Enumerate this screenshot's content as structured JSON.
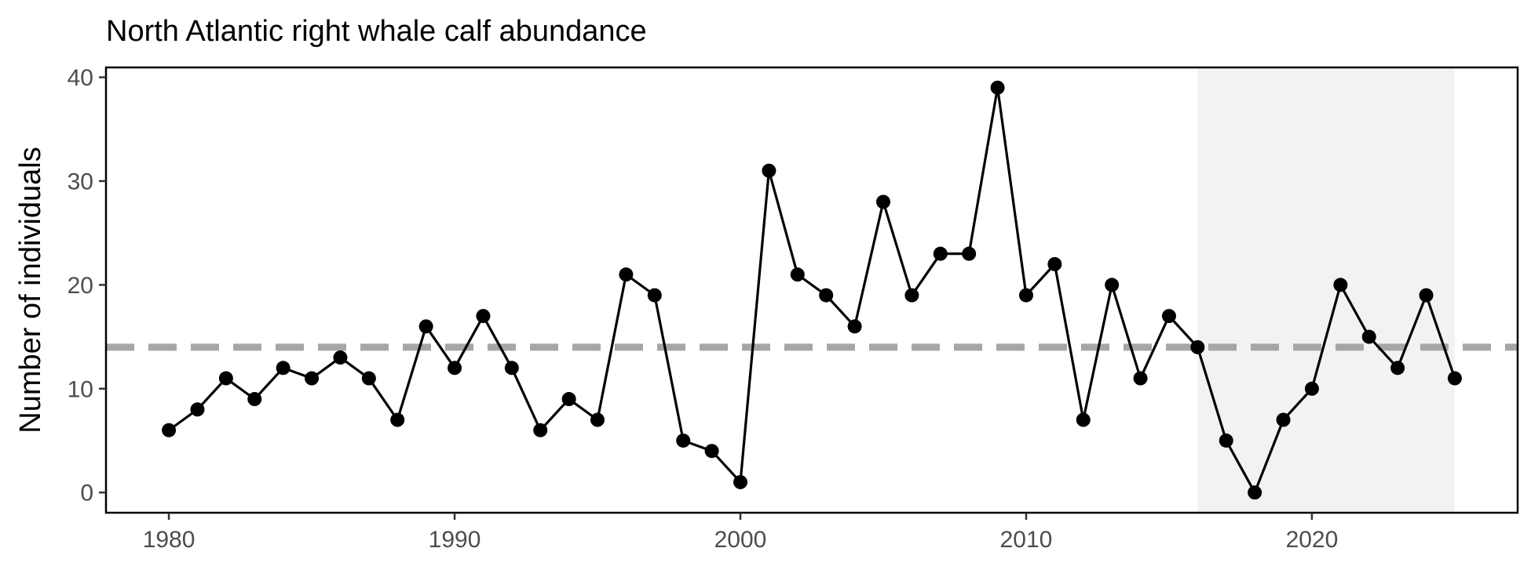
{
  "chart_data": {
    "type": "line",
    "title": "North Atlantic right whale calf abundance",
    "xlabel": "",
    "ylabel": "Number of individuals",
    "x": [
      1980,
      1981,
      1982,
      1983,
      1984,
      1985,
      1986,
      1987,
      1988,
      1989,
      1990,
      1991,
      1992,
      1993,
      1994,
      1995,
      1996,
      1997,
      1998,
      1999,
      2000,
      2001,
      2002,
      2003,
      2004,
      2005,
      2006,
      2007,
      2008,
      2009,
      2010,
      2011,
      2012,
      2013,
      2014,
      2015,
      2016,
      2017,
      2018,
      2019,
      2020,
      2021,
      2022,
      2023,
      2024,
      2025
    ],
    "series": [
      {
        "values": [
          6,
          8,
          11,
          9,
          12,
          11,
          13,
          11,
          7,
          16,
          12,
          17,
          12,
          6,
          9,
          7,
          21,
          19,
          5,
          4,
          1,
          31,
          21,
          19,
          16,
          28,
          19,
          23,
          23,
          39,
          19,
          22,
          7,
          20,
          11,
          17,
          14,
          5,
          0,
          7,
          10,
          20,
          15,
          12,
          19,
          11
        ]
      }
    ],
    "reference_line": {
      "y": 14,
      "style": "dashed",
      "color": "#a6a6a6"
    },
    "shaded_region": {
      "x_range": [
        2016,
        2025
      ],
      "color": "#f2f2f2"
    },
    "xlim": [
      1977.8,
      2027.2
    ],
    "ylim": [
      -1.95,
      40.95
    ],
    "xticks": [
      1980,
      1990,
      2000,
      2010,
      2020
    ],
    "yticks": [
      0,
      10,
      20,
      30,
      40
    ],
    "grid": false,
    "line_color": "#000000",
    "point_color": "#000000"
  }
}
